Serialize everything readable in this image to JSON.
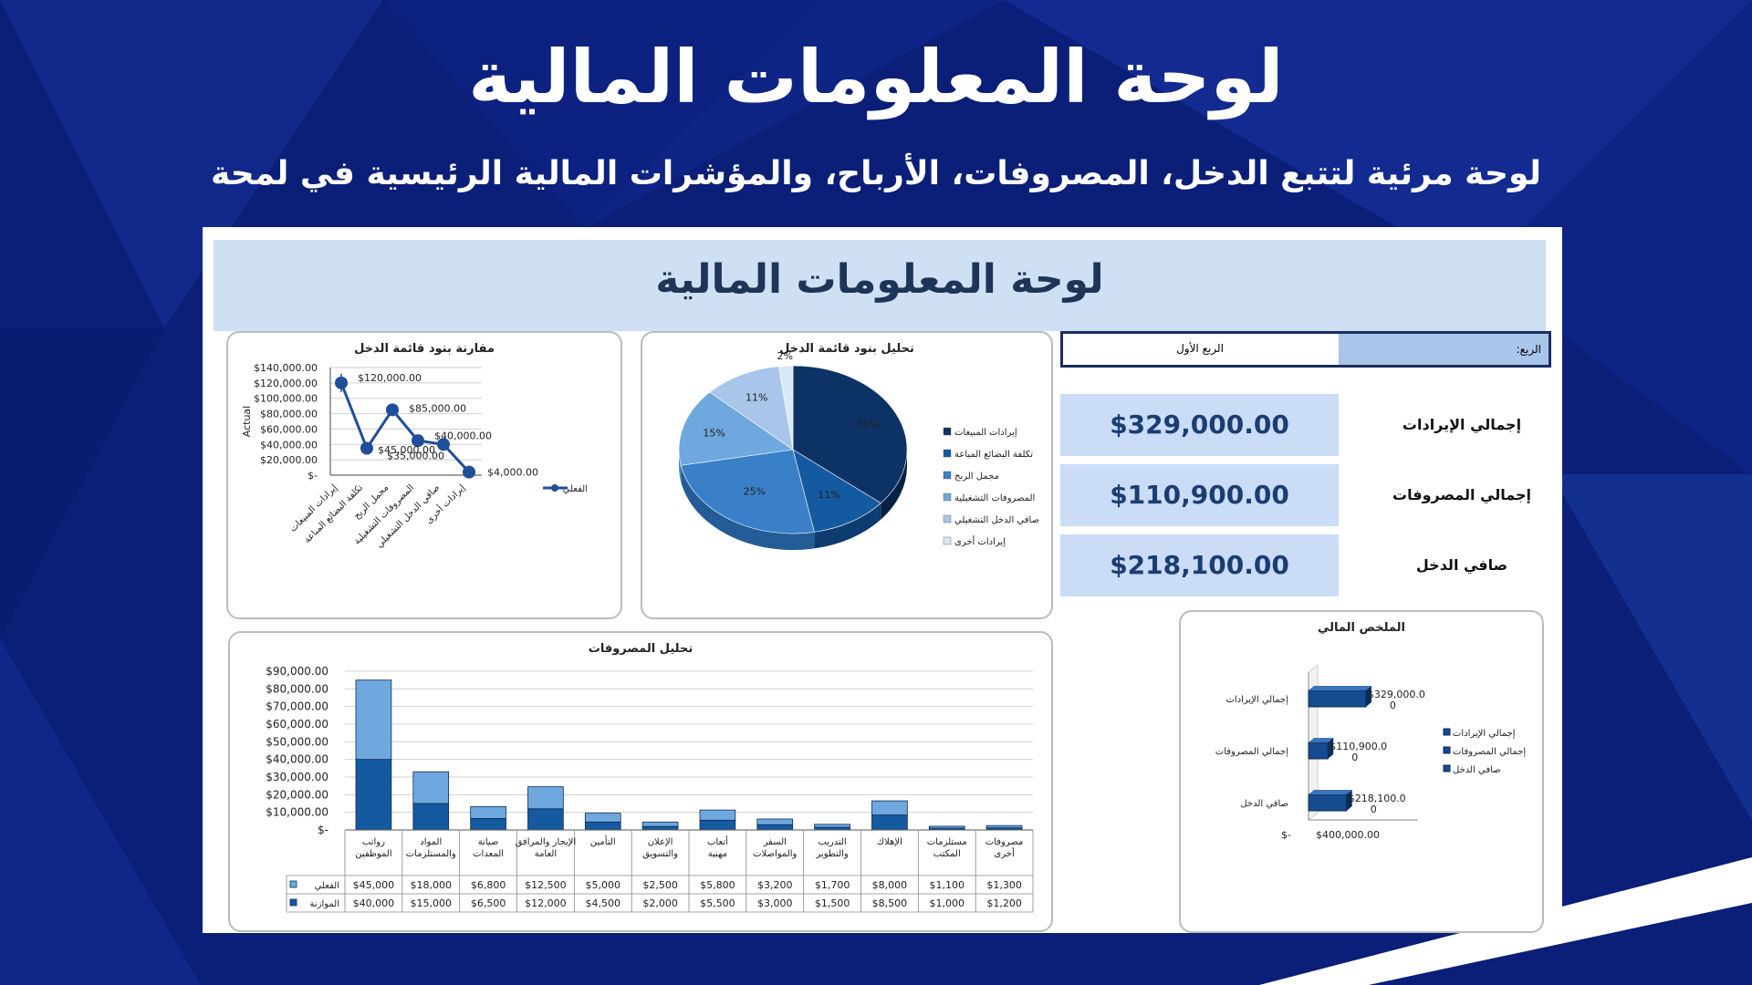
{
  "slide": {
    "title": "لوحة المعلومات المالية",
    "subtitle": "لوحة مرئية لتتبع الدخل، المصروفات، الأرباح، والمؤشرات المالية الرئيسية في لمحة"
  },
  "sheet": {
    "banner_title": "لوحة المعلومات المالية",
    "quarter_label": "الربع:",
    "quarter_value": "الربع الأول"
  },
  "kpis": [
    {
      "label": "إجمالي الإيرادات",
      "value": "$329,000.00"
    },
    {
      "label": "إجمالي المصروفات",
      "value": "$110,900.00"
    },
    {
      "label": "صافي الدخل",
      "value": "$218,100.00"
    }
  ],
  "colors": {
    "background": "#0a1f7a",
    "dark_navy": "#0d3366",
    "mid_blue": "#145aa0",
    "blue": "#3a80c8",
    "light_blue": "#6fa8de",
    "pale_blue": "#a9c6ea",
    "kpi_box": "#cadcf6"
  },
  "chart_data": [
    {
      "id": "line",
      "type": "line",
      "title": "مقارنة بنود قائمة الدخل",
      "ylabel": "Actual",
      "ylim": [
        0,
        140000
      ],
      "yticks": [
        "$-",
        "$20,000.00",
        "$40,000.00",
        "$60,000.00",
        "$80,000.00",
        "$100,000.00",
        "$120,000.00",
        "$140,000.00"
      ],
      "categories": [
        "إيرادات المبيعات",
        "تكلفة البضائع المباعة",
        "مجمل الربح",
        "المصروفات التشغيلية",
        "صافي الدخل التشغيلي",
        "إيرادات أخرى"
      ],
      "series": [
        {
          "name": "الفعلي",
          "values": [
            120000,
            35000,
            85000,
            45000,
            40000,
            4000
          ]
        }
      ],
      "data_labels": [
        "$120,000.00",
        "$35,000.00",
        "$85,000.00",
        "$45,000.00",
        "$40,000.00",
        "$4,000.00"
      ]
    },
    {
      "id": "pie",
      "type": "pie",
      "title": "تحليل بنود قائمة الدخل",
      "categories": [
        "إيرادات المبيعات",
        "تكلفة البضائع المباعة",
        "مجمل الربح",
        "المصروفات التشغيلية",
        "صافي الدخل التشغيلي",
        "إيرادات أخرى"
      ],
      "values": [
        36,
        11,
        25,
        15,
        11,
        2
      ],
      "value_labels": [
        "36%",
        "11%",
        "25%",
        "15%",
        "11%",
        "2%"
      ],
      "colors": [
        "#0d3366",
        "#145aa0",
        "#3a80c8",
        "#6fa8de",
        "#a9c6ea",
        "#dbe8f7"
      ],
      "legend": "right"
    },
    {
      "id": "expenses",
      "type": "bar",
      "stacked": true,
      "title": "تحليل المصروفات",
      "ylim": [
        0,
        90000
      ],
      "yticks": [
        "$-",
        "$10,000.00",
        "$20,000.00",
        "$30,000.00",
        "$40,000.00",
        "$50,000.00",
        "$60,000.00",
        "$70,000.00",
        "$80,000.00",
        "$90,000.00"
      ],
      "categories": [
        "رواتب الموظفين",
        "المواد والمستلزمات",
        "صيانة المعدات",
        "الإيجار والمرافق العامة",
        "التأمين",
        "الإعلان والتسويق",
        "أتعاب مهنية",
        "السفر والمواصلات",
        "التدريب والتطوير",
        "الإهلاك",
        "مستلزمات المكتب",
        "مصروفات أخرى"
      ],
      "series": [
        {
          "name": "الفعلي",
          "values": [
            45000,
            18000,
            6800,
            12500,
            5000,
            2500,
            5800,
            3200,
            1700,
            8000,
            1100,
            1300
          ],
          "labels": [
            "$45,000",
            "$18,000",
            "$6,800",
            "$12,500",
            "$5,000",
            "$2,500",
            "$5,800",
            "$3,200",
            "$1,700",
            "$8,000",
            "$1,100",
            "$1,300"
          ]
        },
        {
          "name": "الموازنة",
          "values": [
            40000,
            15000,
            6500,
            12000,
            4500,
            2000,
            5500,
            3000,
            1500,
            8500,
            1000,
            1200
          ],
          "labels": [
            "$40,000",
            "$15,000",
            "$6,500",
            "$12,000",
            "$4,500",
            "$2,000",
            "$5,500",
            "$3,000",
            "$1,500",
            "$8,500",
            "$1,000",
            "$1,200"
          ]
        }
      ]
    },
    {
      "id": "summary",
      "type": "bar",
      "orientation": "horizontal",
      "title": "الملخص المالي",
      "xticks": [
        "$-",
        "$400,000.00"
      ],
      "xlim": [
        0,
        400000
      ],
      "categories": [
        "إجمالي الإيرادات",
        "إجمالي المصروفات",
        "صافي الدخل"
      ],
      "values": [
        329000,
        110900,
        218100
      ],
      "value_labels": [
        "$329,000.0\n0",
        "$110,900.0\n0",
        "$218,100.0\n0"
      ],
      "legend_entries": [
        "إجمالي الإيرادات",
        "إجمالي المصروفات",
        "صافي الدخل"
      ]
    }
  ]
}
